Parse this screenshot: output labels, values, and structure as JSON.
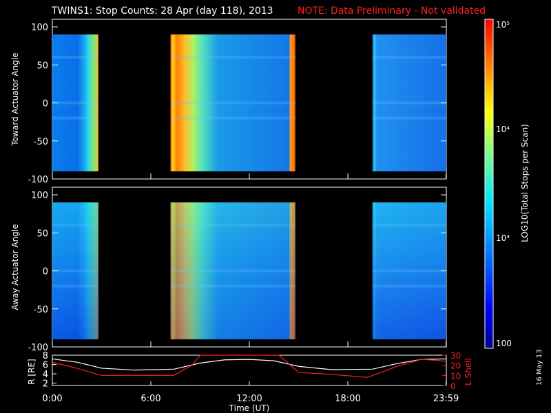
{
  "stamp": "16 May 13",
  "chart_data": {
    "type": "heatmap",
    "title": "TWINS1: Stop Counts: 28 Apr (day 118), 2013",
    "note": "NOTE: Data Preliminary - Not validated",
    "xlabel": "Time (UT)",
    "xticks": [
      "0:00",
      "6:00",
      "12:00",
      "18:00",
      "23:59"
    ],
    "xlim_hours": [
      0,
      24
    ],
    "panels": [
      {
        "ylabel": "Toward Actuator Angle",
        "ylim": [
          -100,
          110
        ],
        "yticks": [
          100,
          50,
          0,
          -50,
          -100
        ],
        "data_intervals_hours": [
          [
            0,
            2.8
          ],
          [
            7.2,
            14.8
          ],
          [
            19.5,
            24
          ]
        ]
      },
      {
        "ylabel": "Away Actuator Angle",
        "ylim": [
          -100,
          110
        ],
        "yticks": [
          100,
          50,
          0,
          -50,
          -100
        ],
        "data_intervals_hours": [
          [
            0,
            2.8
          ],
          [
            7.2,
            14.8
          ],
          [
            19.5,
            24
          ]
        ]
      }
    ],
    "colorbar": {
      "label": "LOG10(Total Stops per Scan)",
      "scale": "log",
      "range": [
        100,
        100000
      ],
      "ticks": [
        "10⁵",
        "10⁴",
        "10³",
        "100"
      ]
    },
    "orbit": {
      "left_label": "R [RE]",
      "right_label": "L Shell",
      "left_ticks": [
        "8",
        "6",
        "4",
        "2"
      ],
      "right_ticks": [
        "30",
        "20",
        "10",
        "0"
      ],
      "left_range": [
        1.5,
        8
      ],
      "right_range": [
        0,
        30
      ],
      "series": [
        {
          "name": "R",
          "color": "#ffffff",
          "x": [
            0,
            1.5,
            3,
            5,
            7.4,
            9,
            10.5,
            12,
            13.5,
            15,
            17,
            19.5,
            21,
            22.5,
            24
          ],
          "y": [
            7.2,
            6.5,
            5.2,
            4.8,
            5.0,
            6.3,
            7.0,
            7.1,
            6.8,
            5.6,
            4.9,
            5.0,
            6.2,
            7.1,
            7.2
          ]
        },
        {
          "name": "L Shell",
          "color": "#ff2020",
          "x": [
            0,
            1.5,
            3,
            5,
            7.4,
            8.5,
            9.0,
            13.8,
            15,
            17,
            19.2,
            21,
            22.5,
            24
          ],
          "y": [
            23,
            17,
            10,
            10,
            10,
            20,
            30,
            30,
            13,
            11,
            8,
            19,
            26,
            24
          ]
        }
      ]
    }
  }
}
